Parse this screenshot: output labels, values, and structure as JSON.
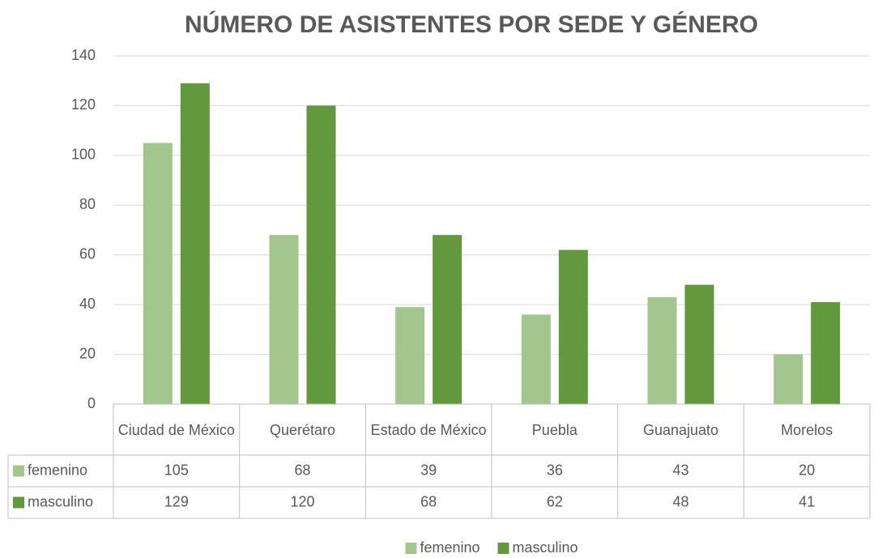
{
  "chart_data": {
    "type": "bar",
    "title": "NÚMERO DE ASISTENTES POR SEDE Y GÉNERO",
    "categories": [
      "Ciudad de México",
      "Querétaro",
      "Estado de México",
      "Puebla",
      "Guanajuato",
      "Morelos"
    ],
    "series": [
      {
        "name": "femenino",
        "color": "#a3c58e",
        "values": [
          105,
          68,
          39,
          36,
          43,
          20
        ]
      },
      {
        "name": "masculino",
        "color": "#62993e",
        "values": [
          129,
          120,
          68,
          62,
          48,
          41
        ]
      }
    ],
    "ylim": [
      0,
      140
    ],
    "yticks": [
      0,
      20,
      40,
      60,
      80,
      100,
      120,
      140
    ],
    "grid": true,
    "legend": "bottom",
    "data_table": true
  }
}
